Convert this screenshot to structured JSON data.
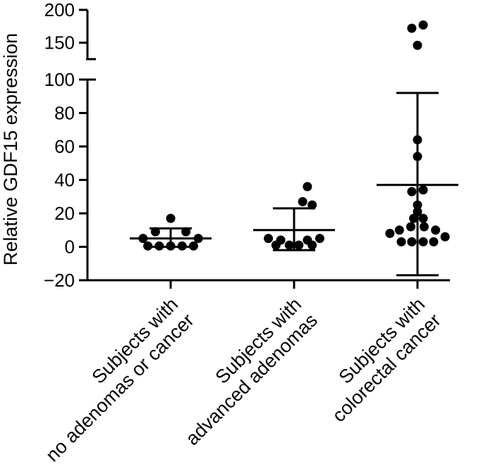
{
  "chart_data": {
    "type": "scatter",
    "title": "",
    "xlabel": "",
    "ylabel": "Relative  GDF15 expression",
    "ylim_lower": [
      -20,
      100
    ],
    "ylim_upper": [
      125,
      200
    ],
    "y_ticks_lower": [
      "−20",
      "0",
      "20",
      "40",
      "60",
      "80",
      "100"
    ],
    "y_ticks_upper": [
      "150",
      "200"
    ],
    "y_tick_values_lower": [
      -20,
      0,
      20,
      40,
      60,
      80,
      100
    ],
    "y_tick_values_upper": [
      150,
      200
    ],
    "axis_break": true,
    "categories": [
      [
        "Subjects with",
        "no adenomas or cancer"
      ],
      [
        "Subjects with",
        "advanced adenomas"
      ],
      [
        "Subjects with",
        "colorectal cancer"
      ]
    ],
    "groups": [
      {
        "name": "Subjects with no adenomas or cancer",
        "points": [
          {
            "x": -0.29,
            "y": 5
          },
          {
            "x": -0.16,
            "y": 9
          },
          {
            "x": 0.0,
            "y": 17
          },
          {
            "x": 0.16,
            "y": 9
          },
          {
            "x": 0.29,
            "y": 5
          },
          {
            "x": -0.24,
            "y": 0.5
          },
          {
            "x": -0.12,
            "y": 0.5
          },
          {
            "x": 0.0,
            "y": 0.5
          },
          {
            "x": 0.12,
            "y": 0.5
          },
          {
            "x": 0.24,
            "y": 0.5
          }
        ],
        "mean": 5,
        "error_upper": 11,
        "error_lower": 0
      },
      {
        "name": "Subjects with advanced adenomas",
        "points": [
          {
            "x": -0.27,
            "y": 5
          },
          {
            "x": -0.14,
            "y": 4
          },
          {
            "x": -0.05,
            "y": 1
          },
          {
            "x": 0.05,
            "y": 1
          },
          {
            "x": 0.14,
            "y": 4
          },
          {
            "x": 0.27,
            "y": 5
          },
          {
            "x": -0.19,
            "y": 1
          },
          {
            "x": 0.19,
            "y": 1
          },
          {
            "x": 0.09,
            "y": 27
          },
          {
            "x": 0.19,
            "y": 25
          },
          {
            "x": 0.14,
            "y": 36
          }
        ],
        "mean": 10,
        "error_upper": 23,
        "error_lower": -2
      },
      {
        "name": "Subjects with colorectal cancer",
        "points": [
          {
            "x": -0.29,
            "y": 8
          },
          {
            "x": -0.19,
            "y": 10
          },
          {
            "x": -0.07,
            "y": 12
          },
          {
            "x": 0.07,
            "y": 12
          },
          {
            "x": 0.19,
            "y": 10
          },
          {
            "x": 0.29,
            "y": 6
          },
          {
            "x": -0.17,
            "y": 3
          },
          {
            "x": -0.06,
            "y": 3
          },
          {
            "x": 0.06,
            "y": 3
          },
          {
            "x": 0.17,
            "y": 3
          },
          {
            "x": -0.04,
            "y": 17
          },
          {
            "x": 0.06,
            "y": 17
          },
          {
            "x": 0.0,
            "y": 21
          },
          {
            "x": 0.0,
            "y": 25
          },
          {
            "x": -0.06,
            "y": 33
          },
          {
            "x": 0.06,
            "y": 34
          },
          {
            "x": 0.0,
            "y": 54
          },
          {
            "x": 0.0,
            "y": 64
          },
          {
            "x": 0.0,
            "y": 146
          },
          {
            "x": -0.06,
            "y": 172
          },
          {
            "x": 0.06,
            "y": 177
          }
        ],
        "mean": 37,
        "error_upper": 92,
        "error_lower": -17
      }
    ]
  }
}
